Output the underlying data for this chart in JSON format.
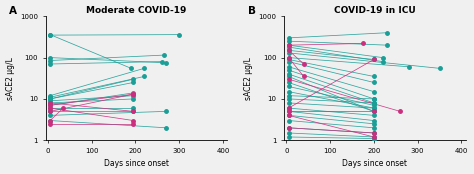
{
  "panel_A_title": "Moderate COVID-19",
  "panel_B_title": "COVID-19 in ICU",
  "xlabel": "Days since onset",
  "ylabel": "sACE2 μg/L",
  "teal_color": "#1a9e96",
  "pink_color": "#cc2d7e",
  "panel_A_label": "A",
  "panel_B_label": "B",
  "panel_A_pairs": [
    {
      "x": [
        5,
        300
      ],
      "y": [
        350,
        360
      ],
      "color": "teal"
    },
    {
      "x": [
        5,
        190
      ],
      "y": [
        360,
        55
      ],
      "color": "teal"
    },
    {
      "x": [
        5,
        270
      ],
      "y": [
        100,
        75
      ],
      "color": "teal"
    },
    {
      "x": [
        5,
        265
      ],
      "y": [
        85,
        115
      ],
      "color": "teal"
    },
    {
      "x": [
        5,
        260
      ],
      "y": [
        70,
        80
      ],
      "color": "teal"
    },
    {
      "x": [
        5,
        220
      ],
      "y": [
        12,
        55
      ],
      "color": "teal"
    },
    {
      "x": [
        5,
        220
      ],
      "y": [
        11,
        35
      ],
      "color": "teal"
    },
    {
      "x": [
        5,
        195
      ],
      "y": [
        10,
        30
      ],
      "color": "teal"
    },
    {
      "x": [
        5,
        195
      ],
      "y": [
        10,
        25
      ],
      "color": "teal"
    },
    {
      "x": [
        5,
        195
      ],
      "y": [
        9,
        12
      ],
      "color": "teal"
    },
    {
      "x": [
        5,
        195
      ],
      "y": [
        8,
        10
      ],
      "color": "teal"
    },
    {
      "x": [
        5,
        195
      ],
      "y": [
        7,
        14
      ],
      "color": "teal"
    },
    {
      "x": [
        5,
        195
      ],
      "y": [
        6,
        6
      ],
      "color": "teal"
    },
    {
      "x": [
        5,
        195
      ],
      "y": [
        5,
        5
      ],
      "color": "teal"
    },
    {
      "x": [
        5,
        270
      ],
      "y": [
        4,
        5
      ],
      "color": "teal"
    },
    {
      "x": [
        5,
        270
      ],
      "y": [
        3,
        2
      ],
      "color": "teal"
    },
    {
      "x": [
        5,
        195
      ],
      "y": [
        7,
        13
      ],
      "color": "pink"
    },
    {
      "x": [
        5,
        195
      ],
      "y": [
        5,
        13
      ],
      "color": "pink"
    },
    {
      "x": [
        5,
        195
      ],
      "y": [
        8,
        5
      ],
      "color": "pink"
    },
    {
      "x": [
        5,
        195
      ],
      "y": [
        6,
        3
      ],
      "color": "pink"
    },
    {
      "x": [
        5,
        35
      ],
      "y": [
        3,
        6
      ],
      "color": "pink"
    },
    {
      "x": [
        5,
        195
      ],
      "y": [
        2.5,
        2.5
      ],
      "color": "pink"
    }
  ],
  "panel_B_pairs": [
    {
      "x": [
        5,
        230
      ],
      "y": [
        300,
        400
      ],
      "color": "teal"
    },
    {
      "x": [
        5,
        230
      ],
      "y": [
        250,
        200
      ],
      "color": "teal"
    },
    {
      "x": [
        5,
        220
      ],
      "y": [
        200,
        100
      ],
      "color": "teal"
    },
    {
      "x": [
        5,
        220
      ],
      "y": [
        180,
        80
      ],
      "color": "teal"
    },
    {
      "x": [
        5,
        200
      ],
      "y": [
        150,
        90
      ],
      "color": "teal"
    },
    {
      "x": [
        5,
        350
      ],
      "y": [
        130,
        55
      ],
      "color": "teal"
    },
    {
      "x": [
        5,
        280
      ],
      "y": [
        100,
        60
      ],
      "color": "teal"
    },
    {
      "x": [
        5,
        200
      ],
      "y": [
        90,
        35
      ],
      "color": "teal"
    },
    {
      "x": [
        5,
        200
      ],
      "y": [
        80,
        25
      ],
      "color": "teal"
    },
    {
      "x": [
        5,
        200
      ],
      "y": [
        60,
        15
      ],
      "color": "teal"
    },
    {
      "x": [
        5,
        200
      ],
      "y": [
        50,
        10
      ],
      "color": "teal"
    },
    {
      "x": [
        5,
        200
      ],
      "y": [
        40,
        8
      ],
      "color": "teal"
    },
    {
      "x": [
        5,
        200
      ],
      "y": [
        35,
        5
      ],
      "color": "teal"
    },
    {
      "x": [
        5,
        200
      ],
      "y": [
        25,
        5
      ],
      "color": "teal"
    },
    {
      "x": [
        5,
        200
      ],
      "y": [
        20,
        7
      ],
      "color": "teal"
    },
    {
      "x": [
        5,
        200
      ],
      "y": [
        15,
        6
      ],
      "color": "teal"
    },
    {
      "x": [
        5,
        200
      ],
      "y": [
        12,
        10
      ],
      "color": "teal"
    },
    {
      "x": [
        5,
        200
      ],
      "y": [
        10,
        8
      ],
      "color": "teal"
    },
    {
      "x": [
        5,
        200
      ],
      "y": [
        8,
        6
      ],
      "color": "teal"
    },
    {
      "x": [
        5,
        200
      ],
      "y": [
        6,
        4
      ],
      "color": "teal"
    },
    {
      "x": [
        5,
        200
      ],
      "y": [
        5,
        3
      ],
      "color": "teal"
    },
    {
      "x": [
        5,
        200
      ],
      "y": [
        4,
        2.5
      ],
      "color": "teal"
    },
    {
      "x": [
        5,
        200
      ],
      "y": [
        3,
        2
      ],
      "color": "teal"
    },
    {
      "x": [
        5,
        200
      ],
      "y": [
        2,
        1.5
      ],
      "color": "teal"
    },
    {
      "x": [
        5,
        200
      ],
      "y": [
        1.5,
        1.2
      ],
      "color": "teal"
    },
    {
      "x": [
        5,
        200
      ],
      "y": [
        1.2,
        1.1
      ],
      "color": "teal"
    },
    {
      "x": [
        5,
        175
      ],
      "y": [
        200,
        220
      ],
      "color": "pink"
    },
    {
      "x": [
        5,
        40
      ],
      "y": [
        150,
        70
      ],
      "color": "pink"
    },
    {
      "x": [
        5,
        40
      ],
      "y": [
        100,
        35
      ],
      "color": "pink"
    },
    {
      "x": [
        5,
        200
      ],
      "y": [
        6,
        90
      ],
      "color": "pink"
    },
    {
      "x": [
        5,
        200
      ],
      "y": [
        5,
        5
      ],
      "color": "pink"
    },
    {
      "x": [
        5,
        200
      ],
      "y": [
        4,
        1.2
      ],
      "color": "pink"
    },
    {
      "x": [
        5,
        260
      ],
      "y": [
        30,
        5
      ],
      "color": "pink"
    },
    {
      "x": [
        5,
        200
      ],
      "y": [
        2,
        1.5
      ],
      "color": "pink"
    }
  ],
  "ylim_log": [
    1,
    1000
  ],
  "xlim_A": [
    -5,
    410
  ],
  "xlim_B": [
    -5,
    410
  ],
  "xticks_A": [
    0,
    100,
    200,
    300,
    400
  ],
  "xticks_B": [
    0,
    100,
    200,
    300,
    400
  ],
  "yticks_log": [
    1,
    10,
    100,
    1000
  ],
  "bg_color": "#f0f0f0"
}
